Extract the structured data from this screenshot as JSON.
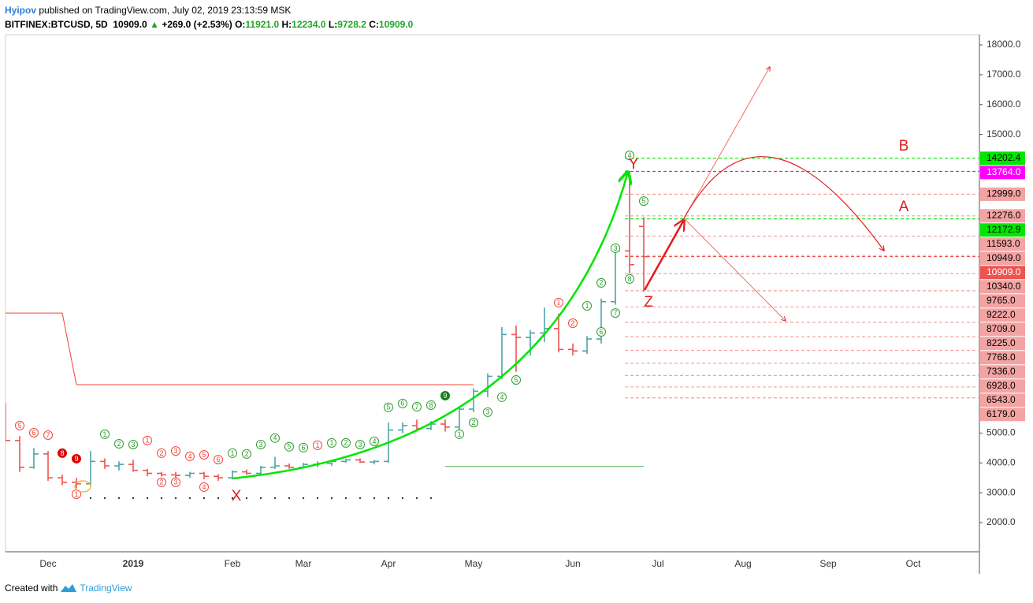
{
  "header": {
    "author": "Hyipov",
    "published": "published on TradingView.com, July 02, 2019 23:13:59 MSK",
    "symbol": "BITFINEX:BTCUSD, 5D",
    "last": "10909.0",
    "arrow": "▲",
    "change": "+269.0 (+2.53%)",
    "o_label": "O:",
    "o": "11921.0",
    "h_label": "H:",
    "h": "12234.0",
    "l_label": "L:",
    "l": "9728.2",
    "c_label": "C:",
    "c": "10909.0"
  },
  "chart_data": {
    "type": "ohlc",
    "categories": [
      null,
      null,
      null,
      "Dec",
      null,
      null,
      null,
      null,
      null,
      "2019",
      null,
      null,
      null,
      null,
      null,
      null,
      "Feb",
      null,
      null,
      null,
      null,
      "Mar",
      null,
      null,
      null,
      null,
      null,
      "Apr",
      null,
      null,
      null,
      null,
      null,
      "May",
      null,
      null,
      null,
      null,
      null,
      null,
      "Jun",
      null,
      null,
      null,
      null,
      null,
      "Jul",
      null,
      null,
      null,
      null,
      null,
      "Aug",
      null,
      null,
      null,
      null,
      null,
      "Sep",
      null,
      null,
      null,
      null,
      null,
      "Oct",
      null,
      null,
      null,
      null
    ],
    "open": [
      5650,
      4750,
      3850,
      4300,
      3500,
      3350,
      3300,
      4050,
      3900,
      3950,
      3750,
      3650,
      3600,
      3580,
      3650,
      3550,
      3500,
      3700,
      3650,
      3850,
      3900,
      3850,
      3950,
      3980,
      4050,
      4100,
      4030,
      4050,
      5100,
      5250,
      5150,
      5300,
      5200,
      5800,
      6400,
      6900,
      8300,
      8200,
      8350,
      8500,
      7800,
      7750,
      8150,
      9400,
      11100,
      11921,
      null,
      null,
      null,
      null,
      null,
      null,
      null,
      null,
      null,
      null,
      null,
      null,
      null,
      null,
      null,
      null,
      null,
      null,
      null,
      null,
      null,
      null,
      null
    ],
    "high": [
      6000,
      4900,
      4500,
      4400,
      3600,
      3500,
      4400,
      4150,
      4050,
      4100,
      3800,
      3700,
      3700,
      3700,
      3700,
      3620,
      3750,
      3780,
      3900,
      4200,
      3980,
      4000,
      4050,
      4100,
      4150,
      4150,
      4100,
      5350,
      5350,
      5450,
      5400,
      5450,
      5900,
      6500,
      7000,
      8550,
      8600,
      8450,
      9200,
      9000,
      8000,
      8250,
      9500,
      11350,
      13764,
      12234,
      null,
      null,
      null,
      null,
      null,
      null,
      null,
      null,
      null,
      null,
      null,
      null,
      null,
      null,
      null,
      null,
      null,
      null,
      null,
      null,
      null,
      null,
      null
    ],
    "low": [
      4700,
      3700,
      3800,
      3400,
      3250,
      3150,
      3250,
      3800,
      3750,
      3700,
      3550,
      3550,
      3500,
      3500,
      3450,
      3400,
      3450,
      3600,
      3600,
      3800,
      3800,
      3820,
      3850,
      3900,
      4000,
      4000,
      3950,
      4000,
      5000,
      5050,
      5100,
      5050,
      5100,
      5700,
      6200,
      6800,
      7050,
      7600,
      8050,
      7700,
      7600,
      7650,
      8000,
      9300,
      10350,
      9728.2,
      null,
      null,
      null,
      null,
      null,
      null,
      null,
      null,
      null,
      null,
      null,
      null,
      null,
      null,
      null,
      null,
      null,
      null,
      null,
      null,
      null,
      null,
      null
    ],
    "close": [
      4750,
      3850,
      4300,
      3500,
      3350,
      3300,
      4050,
      3900,
      3950,
      3750,
      3650,
      3600,
      3580,
      3650,
      3550,
      3500,
      3700,
      3650,
      3850,
      3900,
      3850,
      3950,
      3980,
      4050,
      4100,
      4030,
      4050,
      5100,
      5250,
      5150,
      5300,
      5200,
      5800,
      6400,
      6900,
      8300,
      8200,
      8350,
      8500,
      7800,
      7750,
      8150,
      9400,
      11100,
      10640,
      10909,
      null,
      null,
      null,
      null,
      null,
      null,
      null,
      null,
      null,
      null,
      null,
      null,
      null,
      null,
      null,
      null,
      null,
      null,
      null,
      null,
      null,
      null,
      null
    ],
    "up_color": "#4ea3a6",
    "down_color": "#ef5350",
    "ylim": [
      1023,
      18343
    ],
    "yticks": [
      {
        "value": 18000,
        "label": "18000.0"
      },
      {
        "value": 17000,
        "label": "17000.0"
      },
      {
        "value": 16000,
        "label": "16000.0"
      },
      {
        "value": 15000,
        "label": "15000.0"
      },
      {
        "value": 5000,
        "label": "5000.0"
      },
      {
        "value": 4000,
        "label": "4000.0"
      },
      {
        "value": 3000,
        "label": "3000.0"
      },
      {
        "value": 2000,
        "label": "2000.0"
      }
    ],
    "levels": [
      {
        "value": 14202.4,
        "color": "#00e600",
        "text_color": "#000000"
      },
      {
        "value": 13764,
        "label": "13764.0",
        "color": "#ff00ff",
        "text_color": "#ffffff"
      },
      {
        "value": 12999,
        "label": "12999.0",
        "color": "#f4a3a3",
        "text_color": "#000000"
      },
      {
        "value": 12276,
        "label": "12276.0",
        "color": "#f4a3a3",
        "text_color": "#000000"
      },
      {
        "value": 12172.9,
        "color": "#00e600",
        "text_color": "#000000"
      },
      {
        "value": 11593,
        "label": "11593.0",
        "color": "#f4a3a3",
        "text_color": "#000000"
      },
      {
        "value": 10949,
        "label": "10949.0",
        "color": "#f4a3a3",
        "text_color": "#000000"
      },
      {
        "value": 10909,
        "label": "10909.0",
        "color": "#ef5350",
        "text_color": "#ffffff"
      },
      {
        "value": 10340,
        "label": "10340.0",
        "color": "#f4a3a3",
        "text_color": "#000000"
      },
      {
        "value": 9765,
        "label": "9765.0",
        "color": "#f4a3a3",
        "text_color": "#000000"
      },
      {
        "value": 9222,
        "label": "9222.0",
        "color": "#f4a3a3",
        "text_color": "#000000"
      },
      {
        "value": 8709,
        "label": "8709.0",
        "color": "#f4a3a3",
        "text_color": "#000000"
      },
      {
        "value": 8225,
        "label": "8225.0",
        "color": "#f4a3a3",
        "text_color": "#000000"
      },
      {
        "value": 7768,
        "label": "7768.0",
        "color": "#f4a3a3",
        "text_color": "#000000"
      },
      {
        "value": 7336,
        "label": "7336.0",
        "color": "#f4a3a3",
        "text_color": "#000000"
      },
      {
        "value": 6928,
        "label": "6928.0",
        "color": "#f4a3a3",
        "text_color": "#000000"
      },
      {
        "value": 6543,
        "label": "6543.0",
        "color": "#f4a3a3",
        "text_color": "#000000"
      },
      {
        "value": 6179,
        "label": "6179.0",
        "color": "#f4a3a3",
        "text_color": "#000000"
      }
    ],
    "lines": [
      {
        "color": "#f44336",
        "segments": [
          {
            "value": 9020,
            "from": 0,
            "to": 4
          },
          {
            "value": 6620,
            "from": 5,
            "to": 33
          }
        ]
      },
      {
        "color": "#4caf50",
        "segments": [
          {
            "value": 3880,
            "from": 31,
            "to": 45
          }
        ]
      }
    ],
    "dots": {
      "value": 2820,
      "from": 6,
      "to": 30,
      "color": "#333333"
    },
    "markers": [
      {
        "bar": 1,
        "price": 5250,
        "text": "5",
        "color": "#f44336"
      },
      {
        "bar": 2,
        "price": 5010,
        "text": "6",
        "color": "#f44336"
      },
      {
        "bar": 3,
        "price": 4930,
        "text": "7",
        "color": "#f44336"
      },
      {
        "bar": 4,
        "price": 4325,
        "text": "8",
        "color": "#e00000",
        "filled": true
      },
      {
        "bar": 5,
        "price": 4140,
        "text": "9",
        "color": "#e00000",
        "filled": true
      },
      {
        "bar": 5,
        "price": 2950,
        "text": "1",
        "color": "#f44336"
      },
      {
        "bar": 7,
        "price": 4960,
        "text": "1",
        "color": "#2e9e2e"
      },
      {
        "bar": 8,
        "price": 4640,
        "text": "2",
        "color": "#2e9e2e"
      },
      {
        "bar": 9,
        "price": 4615,
        "text": "3",
        "color": "#2e9e2e"
      },
      {
        "bar": 10,
        "price": 4750,
        "text": "1",
        "color": "#f44336"
      },
      {
        "bar": 11,
        "price": 4325,
        "text": "2",
        "color": "#f44336"
      },
      {
        "bar": 12,
        "price": 4400,
        "text": "3",
        "color": "#f44336"
      },
      {
        "bar": 13,
        "price": 4220,
        "text": "4",
        "color": "#f44336"
      },
      {
        "bar": 14,
        "price": 4270,
        "text": "5",
        "color": "#f44336"
      },
      {
        "bar": 15,
        "price": 4110,
        "text": "6",
        "color": "#f44336"
      },
      {
        "bar": 11,
        "price": 3350,
        "text": "2",
        "color": "#f44336"
      },
      {
        "bar": 12,
        "price": 3350,
        "text": "3",
        "color": "#f44336"
      },
      {
        "bar": 14,
        "price": 3190,
        "text": "4",
        "color": "#f44336"
      },
      {
        "bar": 16,
        "price": 4325,
        "text": "1",
        "color": "#2e9e2e"
      },
      {
        "bar": 17,
        "price": 4300,
        "text": "2",
        "color": "#2e9e2e"
      },
      {
        "bar": 18,
        "price": 4615,
        "text": "3",
        "color": "#2e9e2e"
      },
      {
        "bar": 19,
        "price": 4830,
        "text": "4",
        "color": "#2e9e2e"
      },
      {
        "bar": 20,
        "price": 4540,
        "text": "5",
        "color": "#2e9e2e"
      },
      {
        "bar": 21,
        "price": 4510,
        "text": "6",
        "color": "#2e9e2e"
      },
      {
        "bar": 22,
        "price": 4590,
        "text": "1",
        "color": "#f44336"
      },
      {
        "bar": 23,
        "price": 4670,
        "text": "1",
        "color": "#2e9e2e"
      },
      {
        "bar": 24,
        "price": 4670,
        "text": "2",
        "color": "#2e9e2e"
      },
      {
        "bar": 25,
        "price": 4615,
        "text": "3",
        "color": "#2e9e2e"
      },
      {
        "bar": 26,
        "price": 4720,
        "text": "4",
        "color": "#2e9e2e"
      },
      {
        "bar": 27,
        "price": 5860,
        "text": "5",
        "color": "#2e9e2e"
      },
      {
        "bar": 28,
        "price": 5990,
        "text": "6",
        "color": "#2e9e2e"
      },
      {
        "bar": 29,
        "price": 5880,
        "text": "7",
        "color": "#2e9e2e"
      },
      {
        "bar": 30,
        "price": 5935,
        "text": "8",
        "color": "#2e9e2e"
      },
      {
        "bar": 31,
        "price": 6250,
        "text": "9",
        "color": "#1b7f1b",
        "filled": true
      },
      {
        "bar": 32,
        "price": 4960,
        "text": "1",
        "color": "#2e9e2e"
      },
      {
        "bar": 33,
        "price": 5350,
        "text": "2",
        "color": "#2e9e2e"
      },
      {
        "bar": 34,
        "price": 5700,
        "text": "3",
        "color": "#2e9e2e"
      },
      {
        "bar": 35,
        "price": 6200,
        "text": "4",
        "color": "#2e9e2e"
      },
      {
        "bar": 36,
        "price": 6780,
        "text": "5",
        "color": "#2e9e2e"
      },
      {
        "bar": 39,
        "price": 9370,
        "text": "1",
        "color": "#f44336"
      },
      {
        "bar": 40,
        "price": 8680,
        "text": "2",
        "color": "#f44336"
      },
      {
        "bar": 41,
        "price": 9260,
        "text": "1",
        "color": "#2e9e2e"
      },
      {
        "bar": 42,
        "price": 10030,
        "text": "2",
        "color": "#2e9e2e"
      },
      {
        "bar": 43,
        "price": 11190,
        "text": "3",
        "color": "#2e9e2e"
      },
      {
        "bar": 44,
        "price": 14300,
        "text": "4",
        "color": "#2e9e2e"
      },
      {
        "bar": 45,
        "price": 12770,
        "text": "5",
        "color": "#2e9e2e"
      },
      {
        "bar": 42,
        "price": 8390,
        "text": "6",
        "color": "#2e9e2e"
      },
      {
        "bar": 43,
        "price": 9020,
        "text": "7",
        "color": "#2e9e2e"
      },
      {
        "bar": 44,
        "price": 10160,
        "text": "8",
        "color": "#2e9e2e"
      }
    ],
    "annotations": [
      "X",
      "Y",
      "Z",
      "A",
      "B"
    ]
  },
  "footer": {
    "created": "Created with",
    "brand": "TradingView"
  }
}
